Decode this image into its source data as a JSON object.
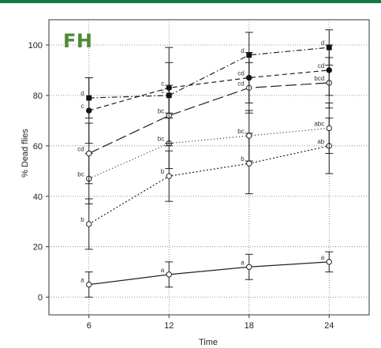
{
  "panel_label": "FH",
  "chart_data": {
    "type": "line",
    "title": "",
    "xlabel": "Time",
    "ylabel": "% Dead flies",
    "x": [
      6,
      12,
      18,
      24
    ],
    "xlim": [
      3,
      27
    ],
    "ylim": [
      -7,
      110
    ],
    "yticks": [
      0,
      20,
      40,
      60,
      80,
      100
    ],
    "grid": true,
    "series": [
      {
        "style": "solid",
        "marker": "open-circle",
        "values": [
          5,
          9,
          12,
          14
        ],
        "err": [
          5,
          5,
          5,
          4
        ],
        "letters": [
          "a",
          "a",
          "a",
          "a"
        ]
      },
      {
        "style": "dotted-dense",
        "marker": "open-circle",
        "values": [
          29,
          48,
          53,
          60
        ],
        "err": [
          10,
          10,
          12,
          11
        ],
        "letters": [
          "b",
          "b",
          "b",
          "ab"
        ]
      },
      {
        "style": "dotted-sparse",
        "marker": "open-circle",
        "values": [
          47,
          61,
          64,
          67
        ],
        "err": [
          10,
          10,
          10,
          10
        ],
        "letters": [
          "bc",
          "bc",
          "bc",
          "abc"
        ]
      },
      {
        "style": "long-dash",
        "marker": "open-circle",
        "values": [
          57,
          72,
          83,
          85
        ],
        "err": [
          12,
          12,
          10,
          10
        ],
        "letters": [
          "cd",
          "bc",
          "cd",
          "bcd"
        ]
      },
      {
        "style": "dash",
        "marker": "filled-circle",
        "values": [
          74,
          83,
          87,
          90
        ],
        "err": [
          13,
          10,
          10,
          10
        ],
        "letters": [
          "c",
          "c",
          "cd",
          "cd"
        ]
      },
      {
        "style": "dash-dot",
        "marker": "filled-square",
        "values": [
          79,
          80,
          96,
          99
        ],
        "err": [
          8,
          19,
          9,
          7
        ],
        "letters": [
          "d",
          "c",
          "d",
          "d"
        ]
      }
    ]
  }
}
